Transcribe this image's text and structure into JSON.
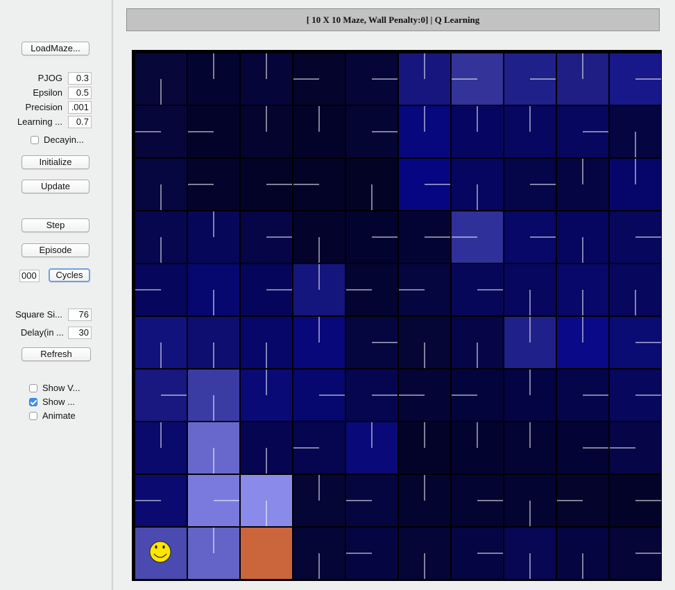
{
  "window_title": "[ 10 X 10 Maze, Wall Penalty:0] |  Q Learning",
  "sidebar": {
    "load_button": "LoadMaze...",
    "params": [
      {
        "name": "pjog",
        "label": "PJOG",
        "value": "0.3"
      },
      {
        "name": "epsilon",
        "label": "Epsilon",
        "value": "0.5"
      },
      {
        "name": "precision",
        "label": "Precision",
        "value": ".001"
      },
      {
        "name": "learning-rate",
        "label": "Learning ...",
        "value": "0.7"
      }
    ],
    "decaying": {
      "label": "Decayin...",
      "checked": false
    },
    "initialize_button": "Initialize",
    "update_button": "Update",
    "step_button": "Step",
    "episode_button": "Episode",
    "cycles_value": "000",
    "cycles_button": "Cycles",
    "square_size": {
      "label": "Square Si...",
      "value": "76"
    },
    "delay": {
      "label": "Delay(in ...",
      "value": "30"
    },
    "refresh_button": "Refresh",
    "checkboxes": [
      {
        "name": "show-values",
        "label": "Show V...",
        "checked": false
      },
      {
        "name": "show-policy",
        "label": "Show ...",
        "checked": true
      },
      {
        "name": "animate",
        "label": "Animate",
        "checked": false
      }
    ]
  },
  "maze": {
    "rows": 10,
    "cols": 10,
    "agent": {
      "row": 9,
      "col": 0,
      "icon": "smiley-icon"
    },
    "goal": {
      "row": 9,
      "col": 2,
      "color": "#cb653c"
    },
    "cell_colors": [
      [
        "#07073a",
        "#040430",
        "#05053a",
        "#04042c",
        "#050538",
        "#16167e",
        "#33339a",
        "#20208a",
        "#1e1e84",
        "#18188a"
      ],
      [
        "#06063a",
        "#03032a",
        "#04042e",
        "#03032a",
        "#050534",
        "#07077e",
        "#060662",
        "#070762",
        "#070760",
        "#050542"
      ],
      [
        "#060640",
        "#03032c",
        "#030328",
        "#030328",
        "#030326",
        "#060682",
        "#060660",
        "#05054a",
        "#050544",
        "#06066a"
      ],
      [
        "#070750",
        "#07075a",
        "#050548",
        "#03032c",
        "#030330",
        "#040434",
        "#30309a",
        "#080868",
        "#060660",
        "#07075e"
      ],
      [
        "#06065c",
        "#070770",
        "#05055c",
        "#15157e",
        "#040432",
        "#050540",
        "#07075a",
        "#070760",
        "#08086a",
        "#07075e"
      ],
      [
        "#12127c",
        "#0e0e70",
        "#07076a",
        "#08087a",
        "#050540",
        "#050536",
        "#050548",
        "#20208a",
        "#0a0a88",
        "#0b0b74"
      ],
      [
        "#181880",
        "#3b3ba4",
        "#0a0a76",
        "#070770",
        "#060650",
        "#040436",
        "#04043c",
        "#040444",
        "#05054c",
        "#07075e"
      ],
      [
        "#0a0a6c",
        "#6868cc",
        "#050552",
        "#050550",
        "#09097a",
        "#03032a",
        "#030330",
        "#030334",
        "#030336",
        "#050548"
      ],
      [
        "#0a0a70",
        "#7a7ade",
        "#8a8aea",
        "#050536",
        "#050540",
        "#040430",
        "#040432",
        "#040432",
        "#04042c",
        "#03032a"
      ],
      [
        "#4a4ab0",
        "#6464c8",
        "#cb653c",
        "#050536",
        "#050542",
        "#050538",
        "#050544",
        "#070754",
        "#050542",
        "#050538"
      ]
    ],
    "policy": [
      [
        "S",
        "N",
        "N",
        "W",
        "E",
        "N",
        "W",
        "E",
        "N",
        "E"
      ],
      [
        "W",
        "W",
        "N",
        "N",
        "E",
        "N",
        "N",
        "N",
        "E",
        "S"
      ],
      [
        "S",
        "W",
        "E",
        "W",
        "S",
        "E",
        "S",
        "E",
        "N",
        "N"
      ],
      [
        "S",
        "N",
        "E",
        "S",
        "E",
        "E",
        "W",
        "E",
        "S",
        "E"
      ],
      [
        "W",
        "S",
        "E",
        "N",
        "W",
        "W",
        "E",
        "S",
        "S",
        "S"
      ],
      [
        "S",
        "S",
        "S",
        "N",
        "E",
        "S",
        "S",
        "N",
        "N",
        "E"
      ],
      [
        "E",
        "S",
        "N",
        "E",
        "E",
        "W",
        "W",
        "N",
        "E",
        "E"
      ],
      [
        "N",
        "S",
        "S",
        "W",
        "N",
        "N",
        "N",
        "N",
        "E",
        "W"
      ],
      [
        "W",
        "E",
        "S",
        "N",
        "W",
        "N",
        "E",
        "S",
        "W",
        "E"
      ],
      [
        "W",
        "N",
        "N",
        "S",
        "W",
        "S",
        "E",
        "S",
        "S",
        "E"
      ]
    ]
  }
}
